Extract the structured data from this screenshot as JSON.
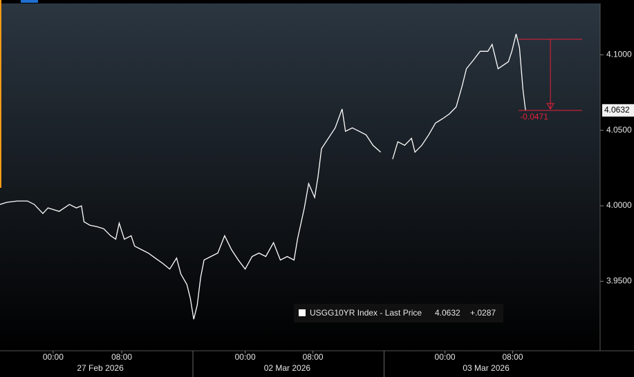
{
  "chart_data": {
    "type": "line",
    "x": [
      0,
      0.8,
      2.0,
      3.2,
      4.0,
      5.0,
      5.6,
      6.9,
      8.1,
      8.9,
      9.5,
      9.8,
      10.5,
      11.3,
      12.1,
      12.9,
      13.5,
      13.9,
      14.5,
      15.3,
      15.7,
      16.5,
      17.3,
      18.1,
      19.0,
      19.8,
      20.6,
      21.1,
      21.8,
      22.2,
      22.6,
      23.0,
      23.4,
      23.8,
      24.6,
      25.4,
      26.2,
      27.0,
      27.8,
      28.6,
      29.4,
      30.2,
      31.0,
      31.9,
      32.7,
      33.5,
      34.3,
      34.7,
      35.5,
      36.0,
      36.7,
      37.1,
      37.5,
      38.3,
      39.1,
      39.9,
      40.3,
      41.1,
      41.9,
      42.7,
      43.5,
      44.4,
      null,
      45.8,
      46.4,
      47.2,
      48.0,
      48.4,
      49.2,
      50.0,
      50.8,
      51.6,
      52.4,
      53.2,
      53.9,
      54.4,
      55.2,
      56.0,
      56.9,
      57.4,
      58.1,
      58.7,
      59.3,
      59.7,
      60.2,
      60.6,
      61.0,
      61.3
    ],
    "series": [
      {
        "name": "USGG10YR Index - Last Price",
        "color": "#ffffff",
        "values": [
          4.0009,
          4.0023,
          4.0032,
          4.0032,
          4.0009,
          3.9949,
          3.9986,
          3.9963,
          4.0009,
          3.9986,
          4.0,
          3.9894,
          3.9871,
          3.9862,
          3.9848,
          3.9802,
          3.9779,
          3.9885,
          3.9779,
          3.9802,
          3.9733,
          3.971,
          3.9687,
          3.9654,
          3.9618,
          3.9581,
          3.9654,
          3.9548,
          3.9479,
          3.9387,
          3.9249,
          3.9341,
          3.9525,
          3.9641,
          3.9664,
          3.9687,
          3.9802,
          3.971,
          3.9641,
          3.9581,
          3.9664,
          3.9687,
          3.9664,
          3.9756,
          3.9641,
          3.9664,
          3.9641,
          3.9779,
          3.9986,
          4.0147,
          4.0055,
          4.0194,
          4.0378,
          4.0447,
          4.0516,
          4.0641,
          4.0493,
          4.0516,
          4.0493,
          4.047,
          4.0401,
          4.0355,
          null,
          4.0309,
          4.0424,
          4.0401,
          4.0447,
          4.0355,
          4.0401,
          4.047,
          4.0548,
          4.0576,
          4.0608,
          4.0654,
          4.0793,
          4.0908,
          4.0963,
          4.1023,
          4.1023,
          4.1069,
          4.0908,
          4.0931,
          4.0954,
          4.1023,
          4.1138,
          4.1046,
          4.077,
          4.0632
        ]
      }
    ],
    "legend_value": "4.0632",
    "legend_change": "+.0287",
    "xlim": [
      0,
      70
    ],
    "ylim": [
      3.904,
      4.134
    ],
    "yticks": [
      {
        "value": 3.95,
        "label": "3.9500"
      },
      {
        "value": 4.0,
        "label": "4.0000"
      },
      {
        "value": 4.05,
        "label": "4.0500"
      },
      {
        "value": 4.1,
        "label": "4.1000"
      }
    ],
    "xticks": [
      {
        "value": 6.2,
        "label": "00:00"
      },
      {
        "value": 14.2,
        "label": "08:00"
      },
      {
        "value": 28.6,
        "label": "00:00"
      },
      {
        "value": 36.5,
        "label": "08:00"
      },
      {
        "value": 51.9,
        "label": "00:00"
      },
      {
        "value": 59.8,
        "label": "08:00"
      }
    ],
    "day_labels": [
      {
        "value": 11.7,
        "label": "27 Feb 2026"
      },
      {
        "value": 33.5,
        "label": "02 Mar 2026"
      },
      {
        "value": 56.7,
        "label": "03 Mar 2026"
      }
    ],
    "day_dividers": [
      22.5,
      44.8
    ],
    "annotation": {
      "label": "-0.0471",
      "from": 4.1103,
      "to": 4.0632,
      "x_start": 60.5,
      "x_end": 67.9,
      "color": "#e8203a"
    }
  }
}
